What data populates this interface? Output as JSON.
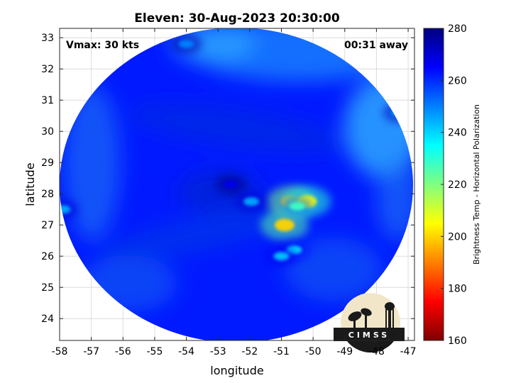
{
  "chart_data": {
    "type": "heatmap",
    "title": "Eleven: 30-Aug-2023 20:30:00",
    "vmax_label": "Vmax: 30 kts",
    "time_away_label": "00:31 away",
    "xlabel": "longitude",
    "ylabel": "latitude",
    "xlim": [
      -58,
      -46.8
    ],
    "ylim": [
      23.3,
      33.3
    ],
    "xticks": [
      -58,
      -57,
      -56,
      -55,
      -54,
      -53,
      -52,
      -51,
      -50,
      -49,
      -48,
      -47
    ],
    "yticks": [
      24,
      25,
      26,
      27,
      28,
      29,
      30,
      31,
      32,
      33
    ],
    "grid": true,
    "colorbar": {
      "label": "Brightness Temp - Horizontal Polarization",
      "range": [
        160,
        280
      ],
      "ticks": [
        160,
        180,
        200,
        220,
        240,
        260,
        280
      ],
      "colormap": [
        "#800000",
        "#ff0000",
        "#ff8000",
        "#ffff00",
        "#80ff80",
        "#00ffff",
        "#0080ff",
        "#0000ff",
        "#000080"
      ]
    },
    "swath": {
      "shape": "circle",
      "center": [
        -52.3,
        28.3
      ],
      "background_value": 262
    },
    "features": [
      {
        "lon": -50.7,
        "lat": 27.75,
        "value": 195
      },
      {
        "lon": -50.2,
        "lat": 27.75,
        "value": 205
      },
      {
        "lon": -50.9,
        "lat": 27.0,
        "value": 200
      },
      {
        "lon": -50.5,
        "lat": 27.6,
        "value": 228
      },
      {
        "lon": -50.6,
        "lat": 26.2,
        "value": 238
      },
      {
        "lon": -51.0,
        "lat": 26.0,
        "value": 242
      },
      {
        "lon": -51.95,
        "lat": 27.75,
        "value": 245
      },
      {
        "lon": -47.3,
        "lat": 30.6,
        "value": 248
      },
      {
        "lon": -54.0,
        "lat": 32.8,
        "value": 250
      },
      {
        "lon": -57.9,
        "lat": 27.5,
        "value": 245
      },
      {
        "lon": -52.6,
        "lat": 28.3,
        "value": 268
      }
    ],
    "logo_text": "CIMSS"
  }
}
